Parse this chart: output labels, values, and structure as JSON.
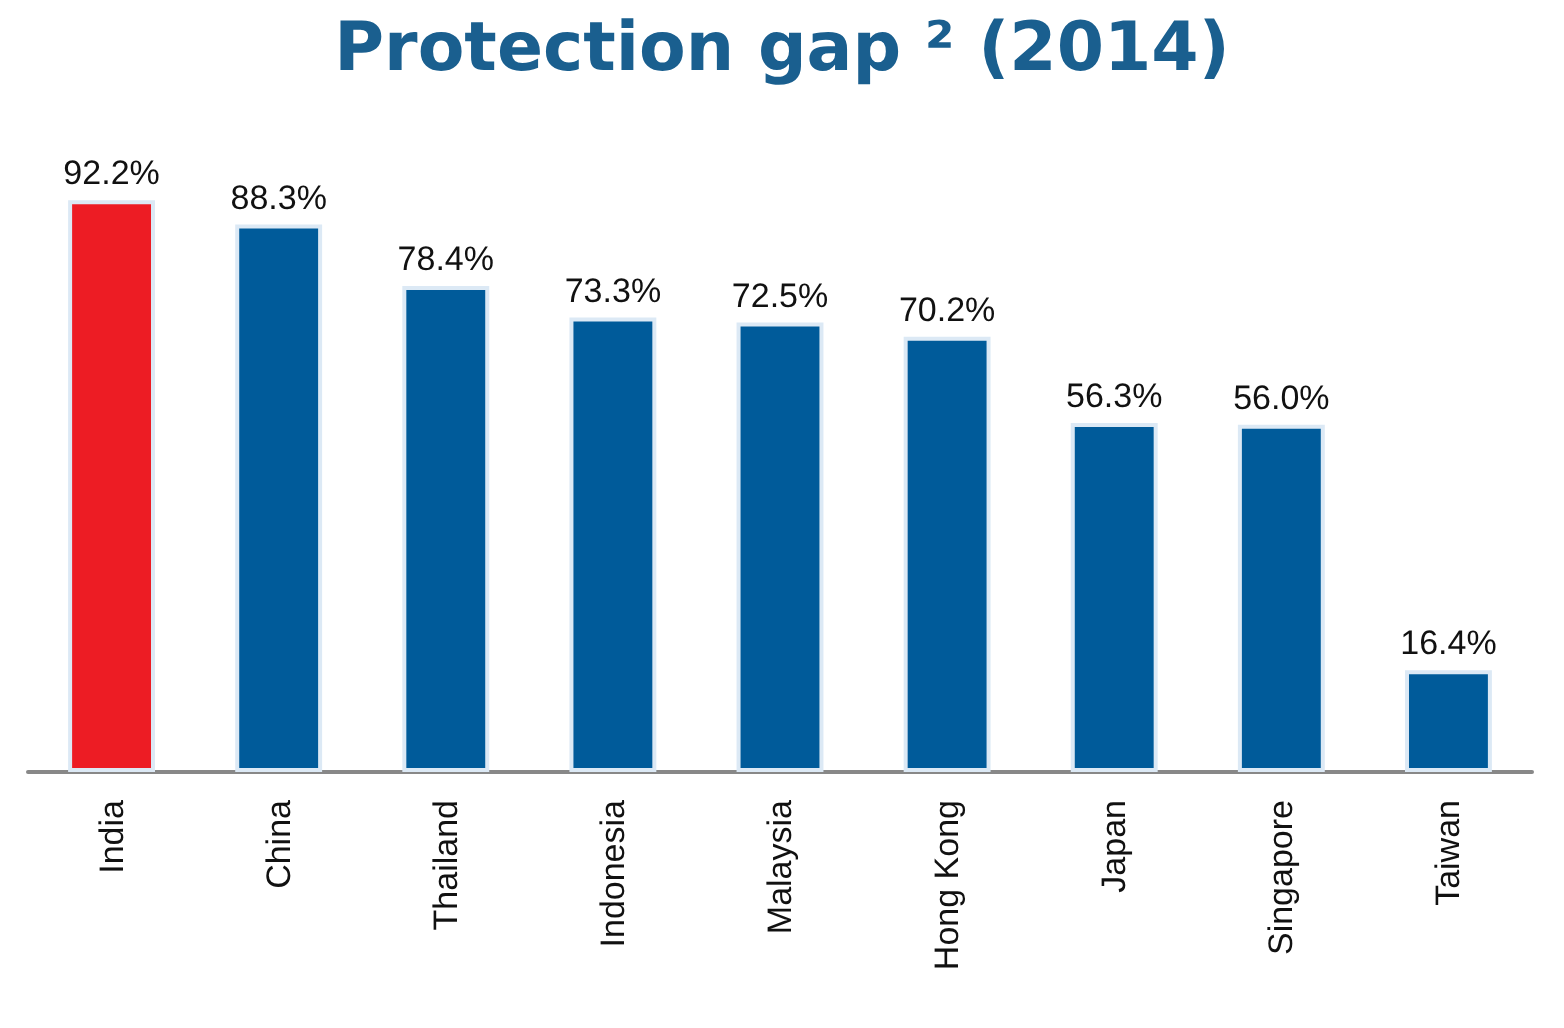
{
  "chart_data": {
    "type": "bar",
    "title": "Protection gap ² (2014)",
    "categories": [
      "India",
      "China",
      "Thailand",
      "Indonesia",
      "Malaysia",
      "Hong Kong",
      "Japan",
      "Singapore",
      "Taiwan"
    ],
    "values": [
      92.2,
      88.3,
      78.4,
      73.3,
      72.5,
      70.2,
      56.3,
      56.0,
      16.4
    ],
    "colors": [
      "#ed1c24",
      "#005b9a",
      "#005b9a",
      "#005b9a",
      "#005b9a",
      "#005b9a",
      "#005b9a",
      "#005b9a",
      "#005b9a"
    ],
    "value_labels": [
      "92.2%",
      "88.3%",
      "78.4%",
      "73.3%",
      "72.5%",
      "70.2%",
      "56.3%",
      "56.0%",
      "16.4%"
    ]
  }
}
